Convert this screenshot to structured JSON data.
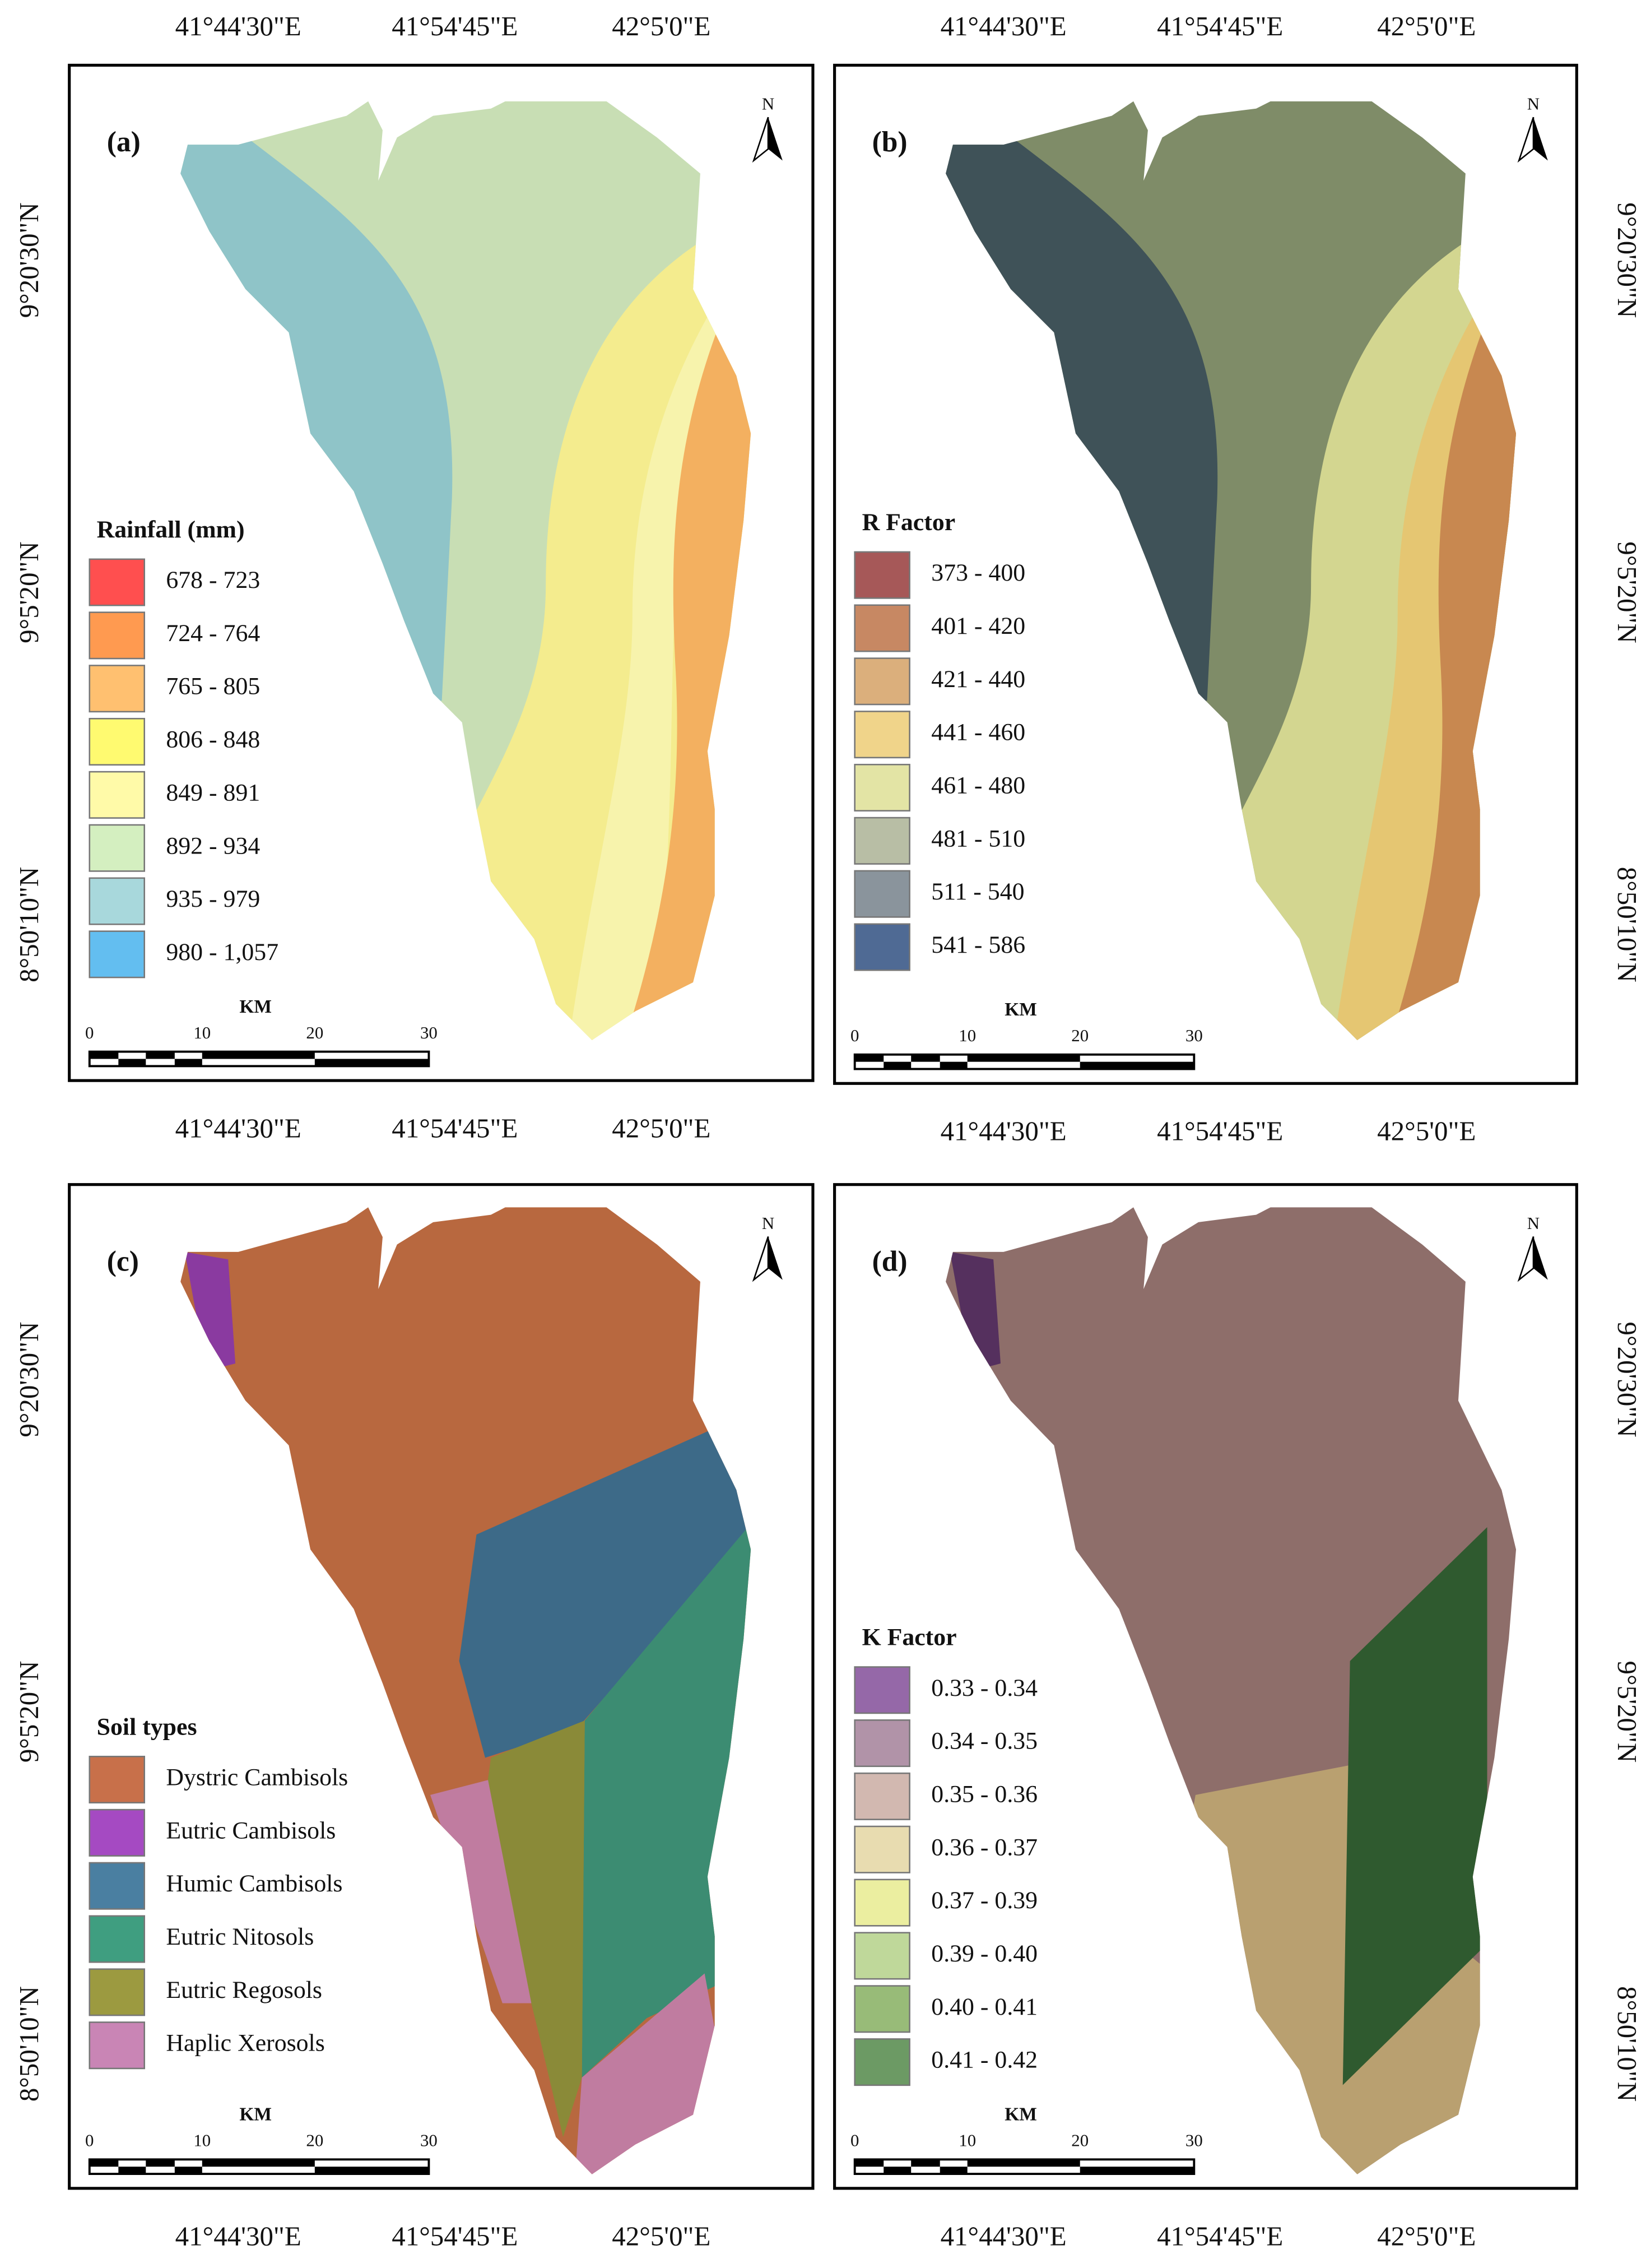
{
  "panels": [
    {
      "title": "(a)",
      "legend_title": "Rainfall (mm)",
      "legend": [
        {
          "label": "678 - 723",
          "color": "#ff4f4f"
        },
        {
          "label": "724 - 764",
          "color": "#ff9a50"
        },
        {
          "label": "765 - 805",
          "color": "#ffc070"
        },
        {
          "label": "806 - 848",
          "color": "#fffa70"
        },
        {
          "label": "849 - 891",
          "color": "#fffaa8"
        },
        {
          "label": "892 - 934",
          "color": "#d4efc0"
        },
        {
          "label": "935 - 979",
          "color": "#a8d8dc"
        },
        {
          "label": "980 - 1,057",
          "color": "#63bef0"
        }
      ],
      "top_labels": [
        "41°44'30\"E",
        "41°54'45\"E",
        "42°5'0\"E"
      ],
      "bottom_labels": [
        "41°44'30\"E",
        "41°54'45\"E",
        "42°5'0\"E"
      ],
      "left_labels": [
        "9°20'30\"N",
        "9°5'20\"N",
        "8°50'10\"N"
      ]
    },
    {
      "title": "(b)",
      "legend_title": "R Factor",
      "legend": [
        {
          "label": "373 - 400",
          "color": "#a65858"
        },
        {
          "label": "401 - 420",
          "color": "#c78863"
        },
        {
          "label": "421 - 440",
          "color": "#dbaf7c"
        },
        {
          "label": "441 - 460",
          "color": "#f0d48a"
        },
        {
          "label": "461 - 480",
          "color": "#e3e4a5"
        },
        {
          "label": "481 - 510",
          "color": "#b8bea5"
        },
        {
          "label": "511 - 540",
          "color": "#8a949c"
        },
        {
          "label": "541 - 586",
          "color": "#4f6a94"
        }
      ],
      "top_labels": [
        "41°44'30\"E",
        "41°54'45\"E",
        "42°5'0\"E"
      ],
      "bottom_labels": [
        "41°44'30\"E",
        "41°54'45\"E",
        "42°5'0\"E"
      ],
      "right_labels": [
        "9°20'30\"N",
        "9°5'20\"N",
        "8°50'10\"N"
      ]
    },
    {
      "title": "(c)",
      "legend_title": "Soil types",
      "legend": [
        {
          "label": "Dystric Cambisols",
          "color": "#c8704a"
        },
        {
          "label": "Eutric Cambisols",
          "color": "#a54ac2"
        },
        {
          "label": "Humic Cambisols",
          "color": "#4a7fa1"
        },
        {
          "label": "Eutric Nitosols",
          "color": "#3f9e80"
        },
        {
          "label": "Eutric Regosols",
          "color": "#9c9a40"
        },
        {
          "label": "Haplic Xerosols",
          "color": "#c985b5"
        }
      ],
      "bottom_labels": [
        "41°44'30\"E",
        "41°54'45\"E",
        "42°5'0\"E"
      ],
      "left_labels": [
        "9°20'30\"N",
        "9°5'20\"N",
        "8°50'10\"N"
      ]
    },
    {
      "title": "(d)",
      "legend_title": "K Factor",
      "legend": [
        {
          "label": "0.33 - 0.34",
          "color": "#9568a8"
        },
        {
          "label": "0.34 - 0.35",
          "color": "#b193a8"
        },
        {
          "label": "0.35 - 0.36",
          "color": "#d2b8b0"
        },
        {
          "label": "0.36 - 0.37",
          "color": "#e8dcb0"
        },
        {
          "label": "0.37 - 0.39",
          "color": "#ebeea0"
        },
        {
          "label": "0.39 - 0.40",
          "color": "#bfd89a"
        },
        {
          "label": "0.40 - 0.41",
          "color": "#98bb78"
        },
        {
          "label": "0.41 - 0.42",
          "color": "#6c9a64"
        }
      ],
      "bottom_labels": [
        "41°44'30\"E",
        "41°54'45\"E",
        "42°5'0\"E"
      ],
      "right_labels": [
        "9°20'30\"N",
        "9°5'20\"N",
        "8°50'10\"N"
      ]
    }
  ],
  "scale_bar": {
    "unit": "KM",
    "ticks": [
      "0",
      "10",
      "20",
      "30"
    ]
  },
  "north": "N"
}
